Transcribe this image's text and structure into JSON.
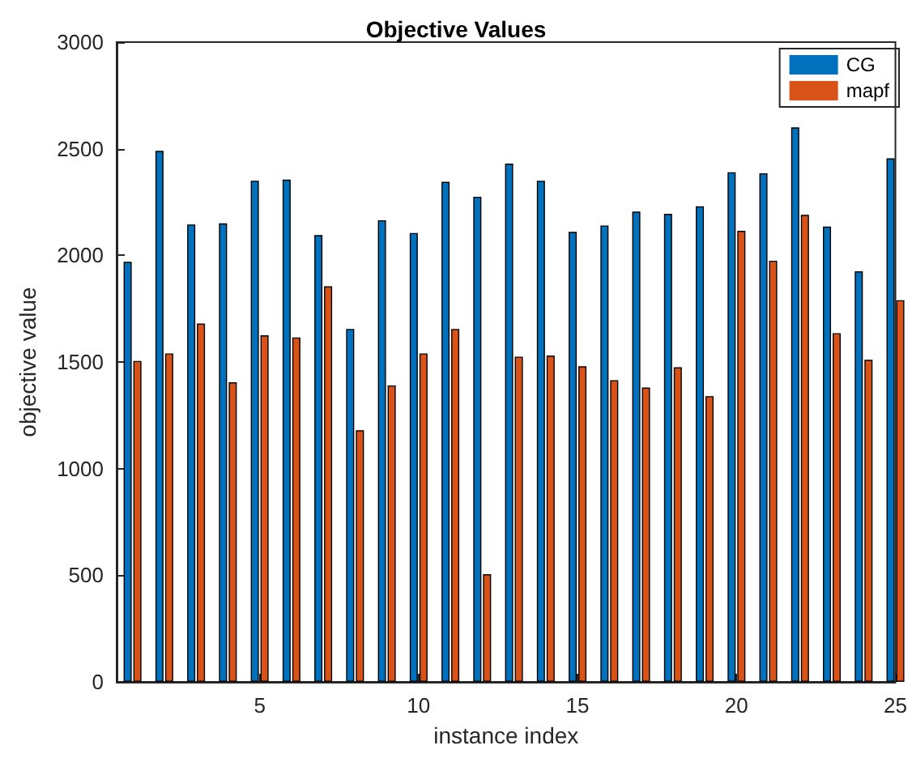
{
  "chart_data": {
    "type": "bar",
    "title": "Objective Values",
    "xlabel": "instance index",
    "ylabel": "objective value",
    "x": [
      1,
      2,
      3,
      4,
      5,
      6,
      7,
      8,
      9,
      10,
      11,
      12,
      13,
      14,
      15,
      16,
      17,
      18,
      19,
      20,
      21,
      22,
      23,
      24,
      25
    ],
    "series": [
      {
        "name": "CG",
        "color": "#0072bd",
        "values": [
          1970,
          2490,
          2145,
          2150,
          2350,
          2355,
          2095,
          1655,
          2165,
          2105,
          2345,
          2275,
          2430,
          2350,
          2110,
          2140,
          2205,
          2195,
          2230,
          2390,
          2385,
          2600,
          2135,
          1925,
          2455
        ]
      },
      {
        "name": "mapf",
        "color": "#d95319",
        "values": [
          1505,
          1540,
          1680,
          1405,
          1625,
          1615,
          1855,
          1180,
          1390,
          1540,
          1655,
          505,
          1525,
          1530,
          1480,
          1415,
          1380,
          1475,
          1340,
          2115,
          1975,
          2190,
          1635,
          1510,
          1790
        ]
      }
    ],
    "xlim": [
      0.5,
      25
    ],
    "xticks": [
      5,
      10,
      15,
      20,
      25
    ],
    "ylim": [
      0,
      3000
    ],
    "yticks": [
      0,
      500,
      1000,
      1500,
      2000,
      2500,
      3000
    ],
    "grid": false,
    "legend": "top right"
  }
}
